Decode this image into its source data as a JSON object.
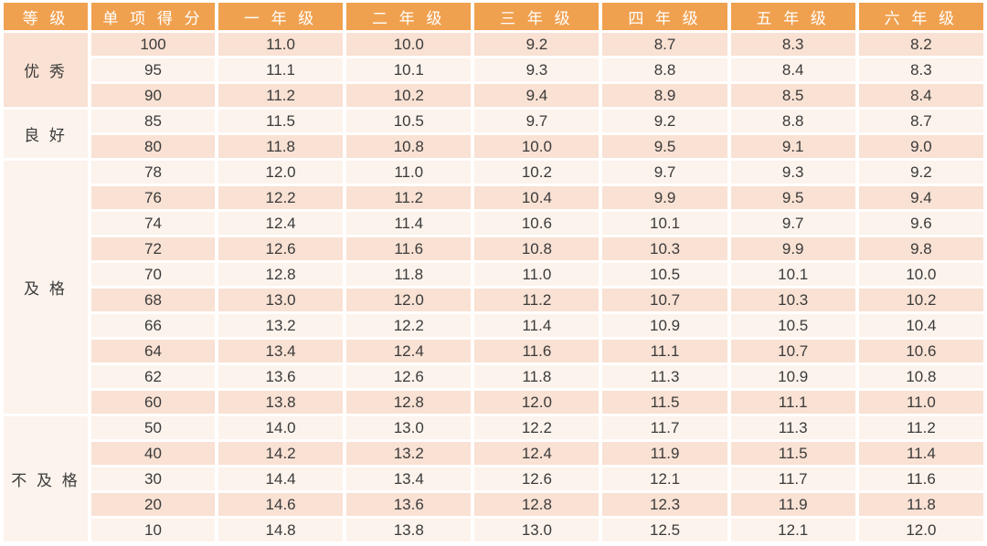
{
  "colors": {
    "header_bg": "#F0A14F",
    "header_text": "#FFFFFF",
    "row_pink": "#F9E1D3",
    "row_light": "#FCF3EC",
    "page_bg": "#FFFFFF",
    "cell_text": "#3B3B3B"
  },
  "chart_data": {
    "type": "table",
    "title": "",
    "columns": [
      "等 级",
      "单 项 得 分",
      "一 年 级",
      "二 年 级",
      "三 年 级",
      "四 年 级",
      "五 年 级",
      "六 年 级"
    ],
    "row_groups": [
      {
        "label": "优 秀",
        "rows": [
          [
            "100",
            "11.0",
            "10.0",
            "9.2",
            "8.7",
            "8.3",
            "8.2"
          ],
          [
            "95",
            "11.1",
            "10.1",
            "9.3",
            "8.8",
            "8.4",
            "8.3"
          ],
          [
            "90",
            "11.2",
            "10.2",
            "9.4",
            "8.9",
            "8.5",
            "8.4"
          ]
        ]
      },
      {
        "label": "良 好",
        "rows": [
          [
            "85",
            "11.5",
            "10.5",
            "9.7",
            "9.2",
            "8.8",
            "8.7"
          ],
          [
            "80",
            "11.8",
            "10.8",
            "10.0",
            "9.5",
            "9.1",
            "9.0"
          ]
        ]
      },
      {
        "label": "及 格",
        "rows": [
          [
            "78",
            "12.0",
            "11.0",
            "10.2",
            "9.7",
            "9.3",
            "9.2"
          ],
          [
            "76",
            "12.2",
            "11.2",
            "10.4",
            "9.9",
            "9.5",
            "9.4"
          ],
          [
            "74",
            "12.4",
            "11.4",
            "10.6",
            "10.1",
            "9.7",
            "9.6"
          ],
          [
            "72",
            "12.6",
            "11.6",
            "10.8",
            "10.3",
            "9.9",
            "9.8"
          ],
          [
            "70",
            "12.8",
            "11.8",
            "11.0",
            "10.5",
            "10.1",
            "10.0"
          ],
          [
            "68",
            "13.0",
            "12.0",
            "11.2",
            "10.7",
            "10.3",
            "10.2"
          ],
          [
            "66",
            "13.2",
            "12.2",
            "11.4",
            "10.9",
            "10.5",
            "10.4"
          ],
          [
            "64",
            "13.4",
            "12.4",
            "11.6",
            "11.1",
            "10.7",
            "10.6"
          ],
          [
            "62",
            "13.6",
            "12.6",
            "11.8",
            "11.3",
            "10.9",
            "10.8"
          ],
          [
            "60",
            "13.8",
            "12.8",
            "12.0",
            "11.5",
            "11.1",
            "11.0"
          ]
        ]
      },
      {
        "label": "不 及 格",
        "rows": [
          [
            "50",
            "14.0",
            "13.0",
            "12.2",
            "11.7",
            "11.3",
            "11.2"
          ],
          [
            "40",
            "14.2",
            "13.2",
            "12.4",
            "11.9",
            "11.5",
            "11.4"
          ],
          [
            "30",
            "14.4",
            "13.4",
            "12.6",
            "12.1",
            "11.7",
            "11.6"
          ],
          [
            "20",
            "14.6",
            "13.6",
            "12.8",
            "12.3",
            "11.9",
            "11.8"
          ],
          [
            "10",
            "14.8",
            "13.8",
            "13.0",
            "12.5",
            "12.1",
            "12.0"
          ]
        ]
      }
    ]
  }
}
